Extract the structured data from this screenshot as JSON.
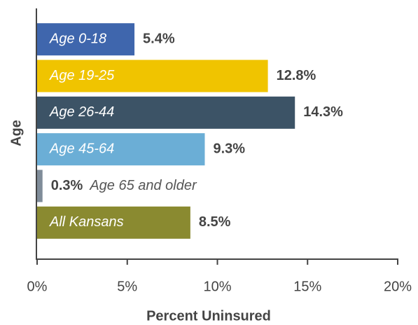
{
  "chart_data": {
    "type": "bar",
    "orientation": "horizontal",
    "categories": [
      "Age 0-18",
      "Age 19-25",
      "Age 26-44",
      "Age 45-64",
      "Age 65 and older",
      "All Kansans"
    ],
    "values": [
      5.4,
      12.8,
      14.3,
      9.3,
      0.3,
      8.5
    ],
    "value_labels": [
      "5.4%",
      "12.8%",
      "14.3%",
      "9.3%",
      "0.3%",
      "8.5%"
    ],
    "colors": [
      "#3f66ad",
      "#f0c400",
      "#3c5366",
      "#6baed6",
      "#7f8c99",
      "#8a8a30"
    ],
    "xlabel": "Percent Uninsured",
    "ylabel": "Age",
    "xlim": [
      0,
      20
    ],
    "xticks": [
      {
        "value": 0,
        "label": "0%"
      },
      {
        "value": 5,
        "label": "5%"
      },
      {
        "value": 10,
        "label": "10%"
      },
      {
        "value": 15,
        "label": "15%"
      },
      {
        "value": 20,
        "label": "20%"
      }
    ]
  }
}
